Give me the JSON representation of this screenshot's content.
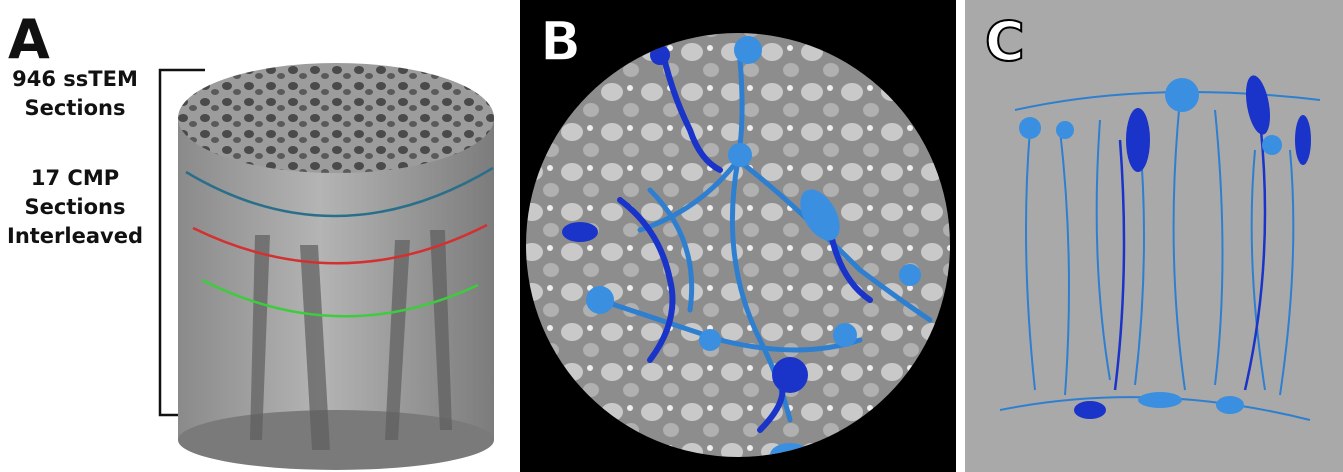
{
  "panels": [
    {
      "label": "A",
      "annotations": [
        {
          "lines": [
            "946 ssTEM",
            "Sections"
          ]
        },
        {
          "lines": [
            "17 CMP",
            "Sections",
            "Interleaved"
          ]
        }
      ]
    },
    {
      "label": "B"
    },
    {
      "label": "C"
    }
  ]
}
